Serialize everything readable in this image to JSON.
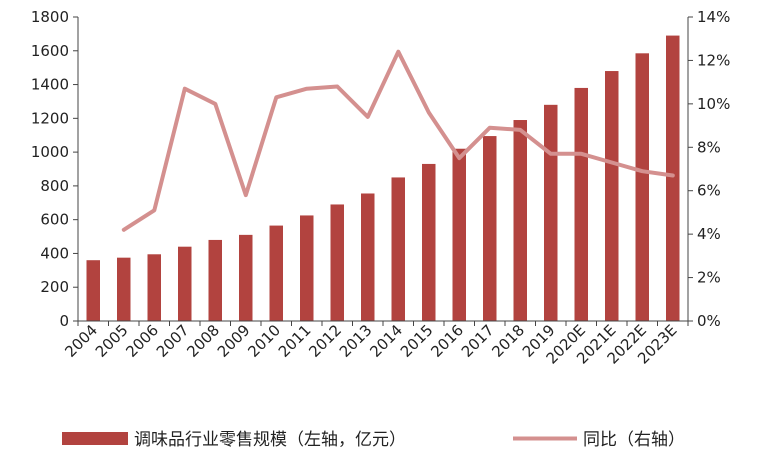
{
  "chart_data": {
    "type": "bar",
    "categories": [
      "2004",
      "2005",
      "2006",
      "2007",
      "2008",
      "2009",
      "2010",
      "2011",
      "2012",
      "2013",
      "2014",
      "2015",
      "2016",
      "2017",
      "2018",
      "2019",
      "2020E",
      "2021E",
      "2022E",
      "2023E"
    ],
    "series": [
      {
        "name": "调味品行业零售规模（左轴，亿元）",
        "type": "bar",
        "axis": "left",
        "color": "#b2433f",
        "values": [
          360,
          375,
          395,
          440,
          480,
          510,
          565,
          625,
          690,
          755,
          850,
          930,
          1020,
          1095,
          1190,
          1280,
          1380,
          1480,
          1585,
          1690
        ]
      },
      {
        "name": "同比（右轴）",
        "type": "line",
        "axis": "right",
        "color": "#d4908f",
        "values": [
          null,
          4.2,
          5.1,
          10.7,
          10.0,
          5.8,
          10.3,
          10.7,
          10.8,
          9.4,
          12.4,
          9.6,
          7.5,
          8.9,
          8.8,
          7.7,
          7.7,
          7.3,
          6.9,
          6.7
        ]
      }
    ],
    "left_axis": {
      "min": 0,
      "max": 1800,
      "step": 200,
      "ticks": [
        "0",
        "200",
        "400",
        "600",
        "800",
        "1000",
        "1200",
        "1400",
        "1600",
        "1800"
      ]
    },
    "right_axis": {
      "min": 0,
      "max": 14,
      "step": 2,
      "ticks": [
        "0%",
        "2%",
        "4%",
        "6%",
        "8%",
        "10%",
        "12%",
        "14%"
      ]
    },
    "title": "",
    "xlabel": "",
    "ylabel": "",
    "grid": false,
    "legend_position": "bottom"
  }
}
